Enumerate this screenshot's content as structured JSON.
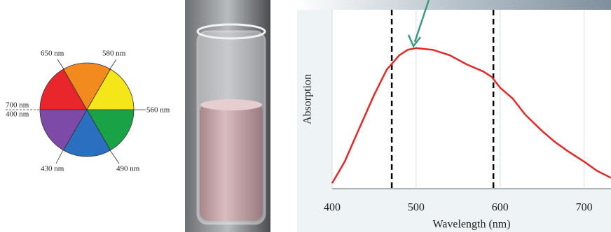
{
  "color_wheel": {
    "labels": {
      "top_left": "650 nm",
      "top_right": "580 nm",
      "right": "560 nm",
      "bottom_right": "490 nm",
      "bottom_left": "430 nm",
      "left_upper": "700 nm",
      "left_lower": "400 nm"
    }
  },
  "chart_data": {
    "type": "line",
    "xlabel": "Wavelength (nm)",
    "ylabel": "Absorption",
    "x": [
      400,
      415,
      430,
      450,
      465,
      480,
      490,
      500,
      520,
      540,
      560,
      580,
      590,
      600,
      615,
      630,
      650,
      665,
      680,
      700,
      715,
      732
    ],
    "series": [
      {
        "color": "#e02a2a",
        "values": [
          0.03,
          0.15,
          0.31,
          0.52,
          0.66,
          0.74,
          0.77,
          0.78,
          0.77,
          0.74,
          0.69,
          0.65,
          0.62,
          0.56,
          0.5,
          0.41,
          0.32,
          0.26,
          0.21,
          0.15,
          0.1,
          0.06
        ]
      }
    ],
    "xlim": [
      400,
      732
    ],
    "ylim": [
      0,
      1
    ],
    "xticks": [
      400,
      500,
      600,
      700
    ],
    "grid": true,
    "markers": [
      471,
      592
    ]
  }
}
